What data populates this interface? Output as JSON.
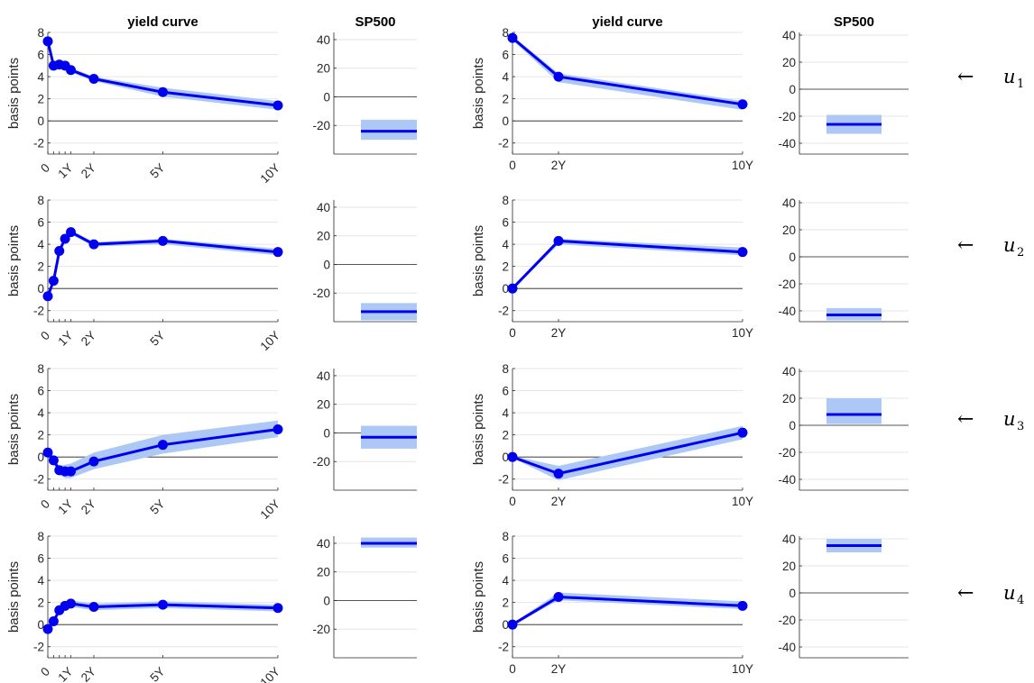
{
  "colors": {
    "line": "#0000ee",
    "band": "#aec8f5",
    "grid": "#e6e6e6",
    "axis": "#262626"
  },
  "shock_labels": [
    {
      "arrow": "←",
      "symbol": "u",
      "subscript": "1"
    },
    {
      "arrow": "←",
      "symbol": "u",
      "subscript": "2"
    },
    {
      "arrow": "←",
      "symbol": "u",
      "subscript": "3"
    },
    {
      "arrow": "←",
      "symbol": "u",
      "subscript": "4"
    }
  ],
  "chart_data": [
    {
      "type": "line",
      "panel": "left-yield-u1",
      "title": "yield curve",
      "ylabel": "basis points",
      "ylim": [
        -3,
        8
      ],
      "yticks": [
        -2,
        0,
        2,
        4,
        6,
        8
      ],
      "xlim": [
        0,
        10
      ],
      "xticks": [
        0,
        1,
        2,
        5,
        10
      ],
      "xticklabels": [
        "0",
        "1Y",
        "2Y",
        "5Y",
        "10Y"
      ],
      "xtick_rotation": 45,
      "markers": true,
      "x": [
        0,
        0.25,
        0.5,
        0.75,
        1,
        2,
        5,
        10
      ],
      "values": [
        7.2,
        5.0,
        5.1,
        5.0,
        4.6,
        3.8,
        2.6,
        1.4
      ],
      "lower": [
        7.0,
        4.8,
        4.8,
        4.8,
        4.4,
        3.6,
        2.2,
        1.0
      ],
      "upper": [
        7.4,
        5.2,
        5.3,
        5.2,
        4.8,
        4.0,
        3.0,
        1.8
      ]
    },
    {
      "type": "band",
      "panel": "left-sp500-u1",
      "title": "SP500",
      "ylim": [
        -40,
        45
      ],
      "yticks": [
        -20,
        0,
        20,
        40
      ],
      "value": -24,
      "lower": -30,
      "upper": -16
    },
    {
      "type": "line",
      "panel": "right-yield-u1",
      "title": "yield curve",
      "ylabel": "basis points",
      "ylim": [
        -3,
        8
      ],
      "yticks": [
        -2,
        0,
        2,
        4,
        6,
        8
      ],
      "xlim": [
        0,
        10
      ],
      "xticks": [
        0,
        2,
        10
      ],
      "xticklabels": [
        "0",
        "2Y",
        "10Y"
      ],
      "xtick_rotation": 0,
      "markers": true,
      "x": [
        0,
        2,
        10
      ],
      "values": [
        7.5,
        4.0,
        1.5
      ],
      "lower": [
        7.3,
        3.5,
        1.0
      ],
      "upper": [
        7.7,
        4.3,
        1.8
      ]
    },
    {
      "type": "band",
      "panel": "right-sp500-u1",
      "title": "SP500",
      "ylim": [
        -48,
        42
      ],
      "yticks": [
        -40,
        -20,
        0,
        20,
        40
      ],
      "value": -26,
      "lower": -33,
      "upper": -19
    },
    {
      "type": "line",
      "panel": "left-yield-u2",
      "ylabel": "basis points",
      "ylim": [
        -3,
        8
      ],
      "yticks": [
        -2,
        0,
        2,
        4,
        6,
        8
      ],
      "xlim": [
        0,
        10
      ],
      "xticks": [
        0,
        1,
        2,
        5,
        10
      ],
      "xticklabels": [
        "0",
        "1Y",
        "2Y",
        "5Y",
        "10Y"
      ],
      "xtick_rotation": 45,
      "markers": true,
      "x": [
        0,
        0.25,
        0.5,
        0.75,
        1,
        2,
        5,
        10
      ],
      "values": [
        -0.7,
        0.7,
        3.4,
        4.5,
        5.1,
        4.0,
        4.3,
        3.3
      ],
      "lower": [
        -0.9,
        0.5,
        3.2,
        4.3,
        4.9,
        3.8,
        4.0,
        3.0
      ],
      "upper": [
        -0.5,
        0.9,
        3.6,
        4.7,
        5.3,
        4.2,
        4.5,
        3.6
      ]
    },
    {
      "type": "band",
      "panel": "left-sp500-u2",
      "ylim": [
        -40,
        45
      ],
      "yticks": [
        -20,
        0,
        20,
        40
      ],
      "value": -33,
      "lower": -39,
      "upper": -27
    },
    {
      "type": "line",
      "panel": "right-yield-u2",
      "ylabel": "basis points",
      "ylim": [
        -3,
        8
      ],
      "yticks": [
        -2,
        0,
        2,
        4,
        6,
        8
      ],
      "xlim": [
        0,
        10
      ],
      "xticks": [
        0,
        2,
        10
      ],
      "xticklabels": [
        "0",
        "2Y",
        "10Y"
      ],
      "xtick_rotation": 0,
      "markers": true,
      "x": [
        0,
        2,
        10
      ],
      "values": [
        0.0,
        4.3,
        3.3
      ],
      "lower": [
        -0.1,
        4.0,
        3.0
      ],
      "upper": [
        0.1,
        4.5,
        3.7
      ]
    },
    {
      "type": "band",
      "panel": "right-sp500-u2",
      "ylim": [
        -48,
        42
      ],
      "yticks": [
        -40,
        -20,
        0,
        20,
        40
      ],
      "value": -43,
      "lower": -47,
      "upper": -38
    },
    {
      "type": "line",
      "panel": "left-yield-u3",
      "ylabel": "basis points",
      "ylim": [
        -3,
        8
      ],
      "yticks": [
        -2,
        0,
        2,
        4,
        6,
        8
      ],
      "xlim": [
        0,
        10
      ],
      "xticks": [
        0,
        1,
        2,
        5,
        10
      ],
      "xticklabels": [
        "0",
        "1Y",
        "2Y",
        "5Y",
        "10Y"
      ],
      "xtick_rotation": 45,
      "markers": true,
      "x": [
        0,
        0.25,
        0.5,
        0.75,
        1,
        2,
        5,
        10
      ],
      "values": [
        0.4,
        -0.3,
        -1.2,
        -1.3,
        -1.3,
        -0.4,
        1.1,
        2.5
      ],
      "lower": [
        0.2,
        -0.6,
        -1.6,
        -1.9,
        -1.9,
        -1.1,
        0.3,
        1.8
      ],
      "upper": [
        0.6,
        0.0,
        -0.8,
        -0.7,
        -0.6,
        0.4,
        2.0,
        3.3
      ]
    },
    {
      "type": "band",
      "panel": "left-sp500-u3",
      "ylim": [
        -40,
        45
      ],
      "yticks": [
        -20,
        0,
        20,
        40
      ],
      "value": -3,
      "lower": -11,
      "upper": 5
    },
    {
      "type": "line",
      "panel": "right-yield-u3",
      "ylabel": "basis points",
      "ylim": [
        -3,
        8
      ],
      "yticks": [
        -2,
        0,
        2,
        4,
        6,
        8
      ],
      "xlim": [
        0,
        10
      ],
      "xticks": [
        0,
        2,
        10
      ],
      "xticklabels": [
        "0",
        "2Y",
        "10Y"
      ],
      "xtick_rotation": 0,
      "markers": true,
      "x": [
        0,
        2,
        10
      ],
      "values": [
        0.0,
        -1.5,
        2.2
      ],
      "lower": [
        -0.1,
        -2.1,
        1.6
      ],
      "upper": [
        0.1,
        -0.8,
        2.8
      ]
    },
    {
      "type": "band",
      "panel": "right-sp500-u3",
      "ylim": [
        -48,
        42
      ],
      "yticks": [
        -40,
        -20,
        0,
        20,
        40
      ],
      "value": 8,
      "lower": 1,
      "upper": 20
    },
    {
      "type": "line",
      "panel": "left-yield-u4",
      "ylabel": "basis points",
      "ylim": [
        -3,
        8
      ],
      "yticks": [
        -2,
        0,
        2,
        4,
        6,
        8
      ],
      "xlim": [
        0,
        10
      ],
      "xticks": [
        0,
        1,
        2,
        5,
        10
      ],
      "xticklabels": [
        "0",
        "1Y",
        "2Y",
        "5Y",
        "10Y"
      ],
      "xtick_rotation": 45,
      "markers": true,
      "x": [
        0,
        0.25,
        0.5,
        0.75,
        1,
        2,
        5,
        10
      ],
      "values": [
        -0.4,
        0.3,
        1.3,
        1.7,
        1.9,
        1.6,
        1.8,
        1.5
      ],
      "lower": [
        -0.6,
        0.1,
        1.1,
        1.5,
        1.6,
        1.3,
        1.5,
        1.2
      ],
      "upper": [
        -0.2,
        0.5,
        1.5,
        1.9,
        2.2,
        1.9,
        2.1,
        1.8
      ]
    },
    {
      "type": "band",
      "panel": "left-sp500-u4",
      "ylim": [
        -40,
        45
      ],
      "yticks": [
        -20,
        0,
        20,
        40
      ],
      "value": 40,
      "lower": 37,
      "upper": 44
    },
    {
      "type": "line",
      "panel": "right-yield-u4",
      "ylabel": "basis points",
      "ylim": [
        -3,
        8
      ],
      "yticks": [
        -2,
        0,
        2,
        4,
        6,
        8
      ],
      "xlim": [
        0,
        10
      ],
      "xticks": [
        0,
        2,
        10
      ],
      "xticklabels": [
        "0",
        "2Y",
        "10Y"
      ],
      "xtick_rotation": 0,
      "markers": true,
      "x": [
        0,
        2,
        10
      ],
      "values": [
        0.0,
        2.5,
        1.7
      ],
      "lower": [
        -0.1,
        2.2,
        1.4
      ],
      "upper": [
        0.1,
        2.9,
        2.1
      ]
    },
    {
      "type": "band",
      "panel": "right-sp500-u4",
      "ylim": [
        -48,
        42
      ],
      "yticks": [
        -40,
        -20,
        0,
        20,
        40
      ],
      "value": 35,
      "lower": 30,
      "upper": 40
    }
  ]
}
